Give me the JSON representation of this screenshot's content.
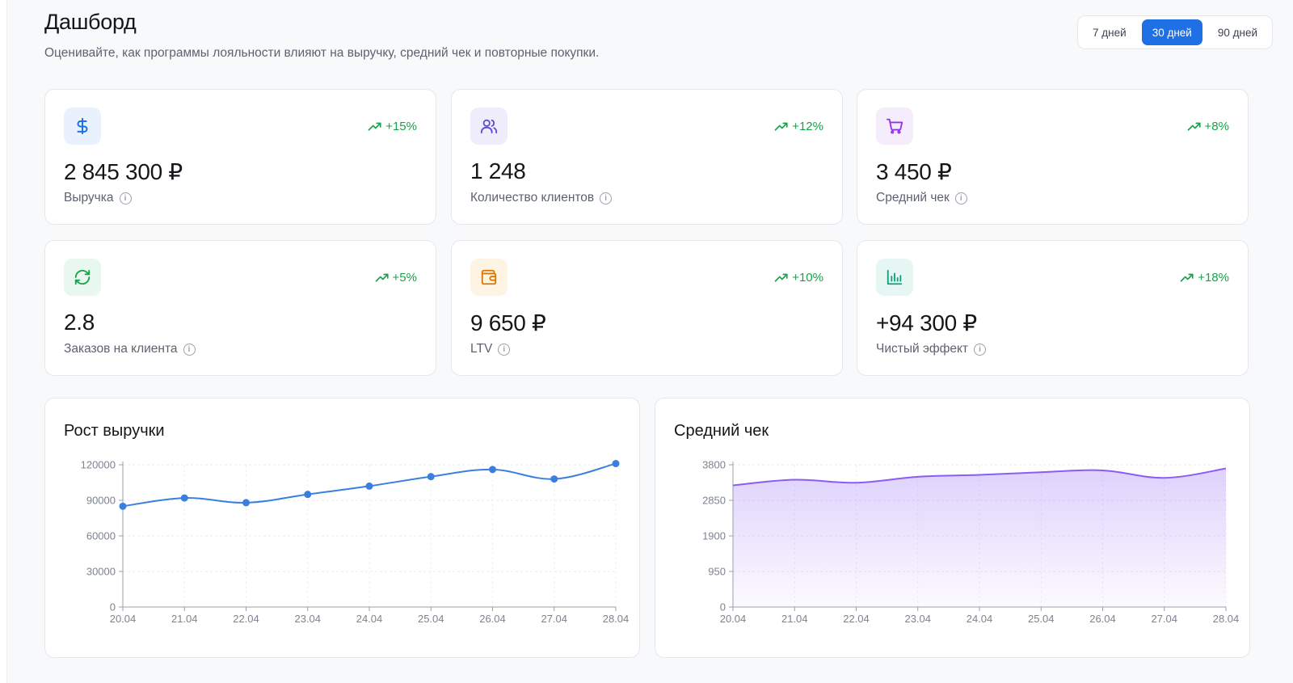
{
  "header": {
    "title": "Дашборд",
    "subtitle": "Оценивайте, как программы лояльности влияют на выручку, средний чек и повторные покупки."
  },
  "period": {
    "options": [
      "7 дней",
      "30 дней",
      "90 дней"
    ],
    "selected": "30 дней"
  },
  "kpis": [
    {
      "icon": "dollar-icon",
      "value": "2 845 300 ₽",
      "label": "Выручка",
      "trend": "+15%",
      "icon_bg": "#e9f1fd",
      "icon_color": "#1f6fe5"
    },
    {
      "icon": "users-icon",
      "value": "1 248",
      "label": "Количество клиентов",
      "trend": "+12%",
      "icon_bg": "#efedfb",
      "icon_color": "#5b4fcf"
    },
    {
      "icon": "cart-icon",
      "value": "3 450 ₽",
      "label": "Средний чек",
      "trend": "+8%",
      "icon_bg": "#f5ecfc",
      "icon_color": "#9333ea"
    },
    {
      "icon": "refresh-icon",
      "value": "2.8",
      "label": "Заказов на клиента",
      "trend": "+5%",
      "icon_bg": "#e8f8ee",
      "icon_color": "#16a34a"
    },
    {
      "icon": "wallet-icon",
      "value": "9 650 ₽",
      "label": "LTV",
      "trend": "+10%",
      "icon_bg": "#fdf4e3",
      "icon_color": "#d97706"
    },
    {
      "icon": "bar-chart-icon",
      "value": "+94 300 ₽",
      "label": "Чистый эффект",
      "trend": "+18%",
      "icon_bg": "#e6f7f3",
      "icon_color": "#0f9f7f"
    }
  ],
  "colors": {
    "accent": "#1f6fe5",
    "trend_positive": "#17a34a",
    "revenue_line": "#3a7fe0",
    "avg_check_line": "#8b5cf6"
  },
  "chart_data": [
    {
      "type": "line",
      "title": "Рост выручки",
      "x": [
        "20.04",
        "21.04",
        "22.04",
        "23.04",
        "24.04",
        "25.04",
        "26.04",
        "27.04",
        "28.04"
      ],
      "series": [
        {
          "values": [
            85000,
            92000,
            88000,
            95000,
            102000,
            110000,
            116000,
            108000,
            121000
          ]
        }
      ],
      "yticks": [
        0,
        30000,
        60000,
        90000,
        120000
      ],
      "ylim": [
        0,
        120000
      ],
      "grid": true,
      "markers": true
    },
    {
      "type": "area",
      "title": "Средний чек",
      "x": [
        "20.04",
        "21.04",
        "22.04",
        "23.04",
        "24.04",
        "25.04",
        "26.04",
        "27.04",
        "28.04"
      ],
      "series": [
        {
          "values": [
            3250,
            3400,
            3320,
            3480,
            3530,
            3600,
            3650,
            3450,
            3700
          ]
        }
      ],
      "yticks": [
        0,
        950,
        1900,
        2850,
        3800
      ],
      "ylim": [
        0,
        3800
      ],
      "grid": true,
      "markers": false
    }
  ]
}
